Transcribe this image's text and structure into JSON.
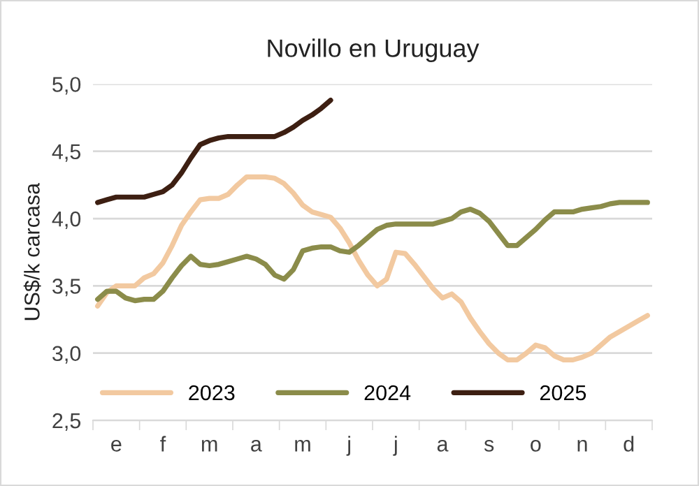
{
  "chart_data": {
    "type": "line",
    "title": "Novillo en Uruguay",
    "ylabel": "US$/k carcasa",
    "categories": [
      null,
      null,
      "e",
      null,
      null,
      null,
      null,
      "f",
      null,
      null,
      null,
      null,
      "m",
      null,
      null,
      null,
      null,
      "a",
      null,
      null,
      null,
      null,
      "m",
      null,
      null,
      null,
      null,
      "j",
      null,
      null,
      null,
      null,
      "j",
      null,
      null,
      null,
      null,
      "a",
      null,
      null,
      null,
      null,
      "s",
      null,
      null,
      null,
      null,
      "o",
      null,
      null,
      null,
      null,
      "n",
      null,
      null,
      null,
      null,
      "d",
      null,
      null
    ],
    "series": [
      {
        "name": "2023",
        "color": "#f2c9a0",
        "values": [
          3.35,
          3.45,
          3.5,
          3.5,
          3.5,
          3.56,
          3.59,
          3.67,
          3.8,
          3.95,
          4.05,
          4.14,
          4.15,
          4.15,
          4.18,
          4.25,
          4.31,
          4.31,
          4.31,
          4.3,
          4.26,
          4.19,
          4.1,
          4.05,
          4.03,
          4.01,
          3.93,
          3.82,
          3.69,
          3.58,
          3.5,
          3.55,
          3.75,
          3.74,
          3.66,
          3.57,
          3.48,
          3.41,
          3.44,
          3.38,
          3.26,
          3.16,
          3.07,
          3.0,
          2.95,
          2.95,
          3.0,
          3.06,
          3.04,
          2.98,
          2.95,
          2.95,
          2.97,
          3.0,
          3.06,
          3.12,
          3.16,
          3.2,
          3.24,
          3.28
        ]
      },
      {
        "name": "2024",
        "color": "#8b8c4a",
        "values": [
          3.4,
          3.46,
          3.46,
          3.41,
          3.39,
          3.4,
          3.4,
          3.46,
          3.56,
          3.65,
          3.72,
          3.66,
          3.65,
          3.66,
          3.68,
          3.7,
          3.72,
          3.7,
          3.66,
          3.58,
          3.55,
          3.62,
          3.76,
          3.78,
          3.79,
          3.79,
          3.76,
          3.75,
          3.8,
          3.86,
          3.92,
          3.95,
          3.96,
          3.96,
          3.96,
          3.96,
          3.96,
          3.98,
          4.0,
          4.05,
          4.07,
          4.04,
          3.98,
          3.89,
          3.8,
          3.8,
          3.86,
          3.92,
          3.99,
          4.05,
          4.05,
          4.05,
          4.07,
          4.08,
          4.09,
          4.11,
          4.12,
          4.12,
          4.12,
          4.12
        ]
      },
      {
        "name": "2025",
        "color": "#3d1f12",
        "values": [
          4.12,
          4.14,
          4.16,
          4.16,
          4.16,
          4.16,
          4.18,
          4.2,
          4.25,
          4.34,
          4.45,
          4.55,
          4.58,
          4.6,
          4.61,
          4.61,
          4.61,
          4.61,
          4.61,
          4.61,
          4.64,
          4.68,
          4.73,
          4.77,
          4.82,
          4.88,
          null,
          null,
          null,
          null,
          null,
          null,
          null,
          null,
          null,
          null,
          null,
          null,
          null,
          null,
          null,
          null,
          null,
          null,
          null,
          null,
          null,
          null,
          null,
          null,
          null,
          null,
          null,
          null,
          null,
          null,
          null,
          null,
          null,
          null
        ]
      }
    ],
    "ylim": [
      2.5,
      5.0
    ],
    "yticks": [
      {
        "value": 2.5,
        "label": "2,5"
      },
      {
        "value": 3,
        "label": "3,0"
      },
      {
        "value": 3.5,
        "label": "3,5"
      },
      {
        "value": 4,
        "label": "4,0"
      },
      {
        "value": 4.5,
        "label": "4,5"
      },
      {
        "value": 5,
        "label": "5,0"
      }
    ],
    "grid": "y",
    "legend": "bottom",
    "marker": "none",
    "line_style": "solid"
  }
}
